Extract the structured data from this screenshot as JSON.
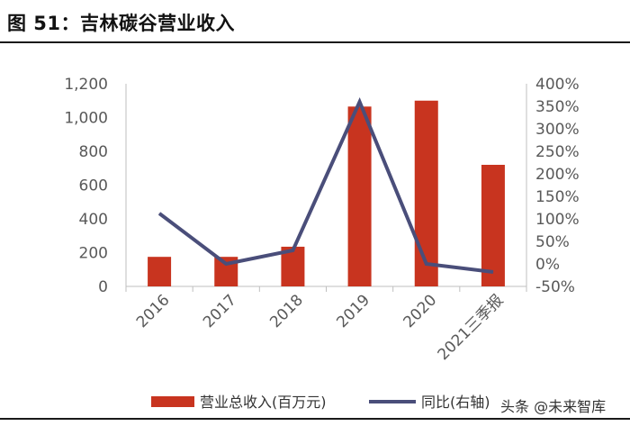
{
  "figure_title": "图 51：吉林碳谷营业收入",
  "watermark": "头条 @未来智库",
  "colors": {
    "bar": "#c8341f",
    "line": "#4a4e7a",
    "axis": "#bfbfbf",
    "text": "#595959"
  },
  "chart_data": {
    "type": "bar+line",
    "title": "吉林碳谷营业收入",
    "categories": [
      "2016",
      "2017",
      "2018",
      "2019",
      "2020",
      "2021三季报"
    ],
    "series": [
      {
        "name": "营业总收入(百万元)",
        "type": "bar",
        "axis": "left",
        "values": [
          175,
          175,
          235,
          1065,
          1100,
          720
        ]
      },
      {
        "name": "同比(右轴)",
        "type": "line",
        "axis": "right",
        "values": [
          1.12,
          0.0,
          0.3,
          3.6,
          0.0,
          -0.18
        ]
      }
    ],
    "y_left": {
      "ylim": [
        0,
        1200
      ],
      "ticks": [
        "0",
        "200",
        "400",
        "600",
        "800",
        "1,000",
        "1,200"
      ],
      "tick_values": [
        0,
        200,
        400,
        600,
        800,
        1000,
        1200
      ]
    },
    "y_right": {
      "ylim": [
        -0.5,
        4.0
      ],
      "ticks": [
        "-50%",
        "0%",
        "50%",
        "100%",
        "150%",
        "200%",
        "250%",
        "300%",
        "350%",
        "400%"
      ],
      "tick_values": [
        -0.5,
        0,
        0.5,
        1.0,
        1.5,
        2.0,
        2.5,
        3.0,
        3.5,
        4.0
      ]
    },
    "legend": [
      "营业总收入(百万元)",
      "同比(右轴)"
    ],
    "legend_position": "bottom"
  }
}
